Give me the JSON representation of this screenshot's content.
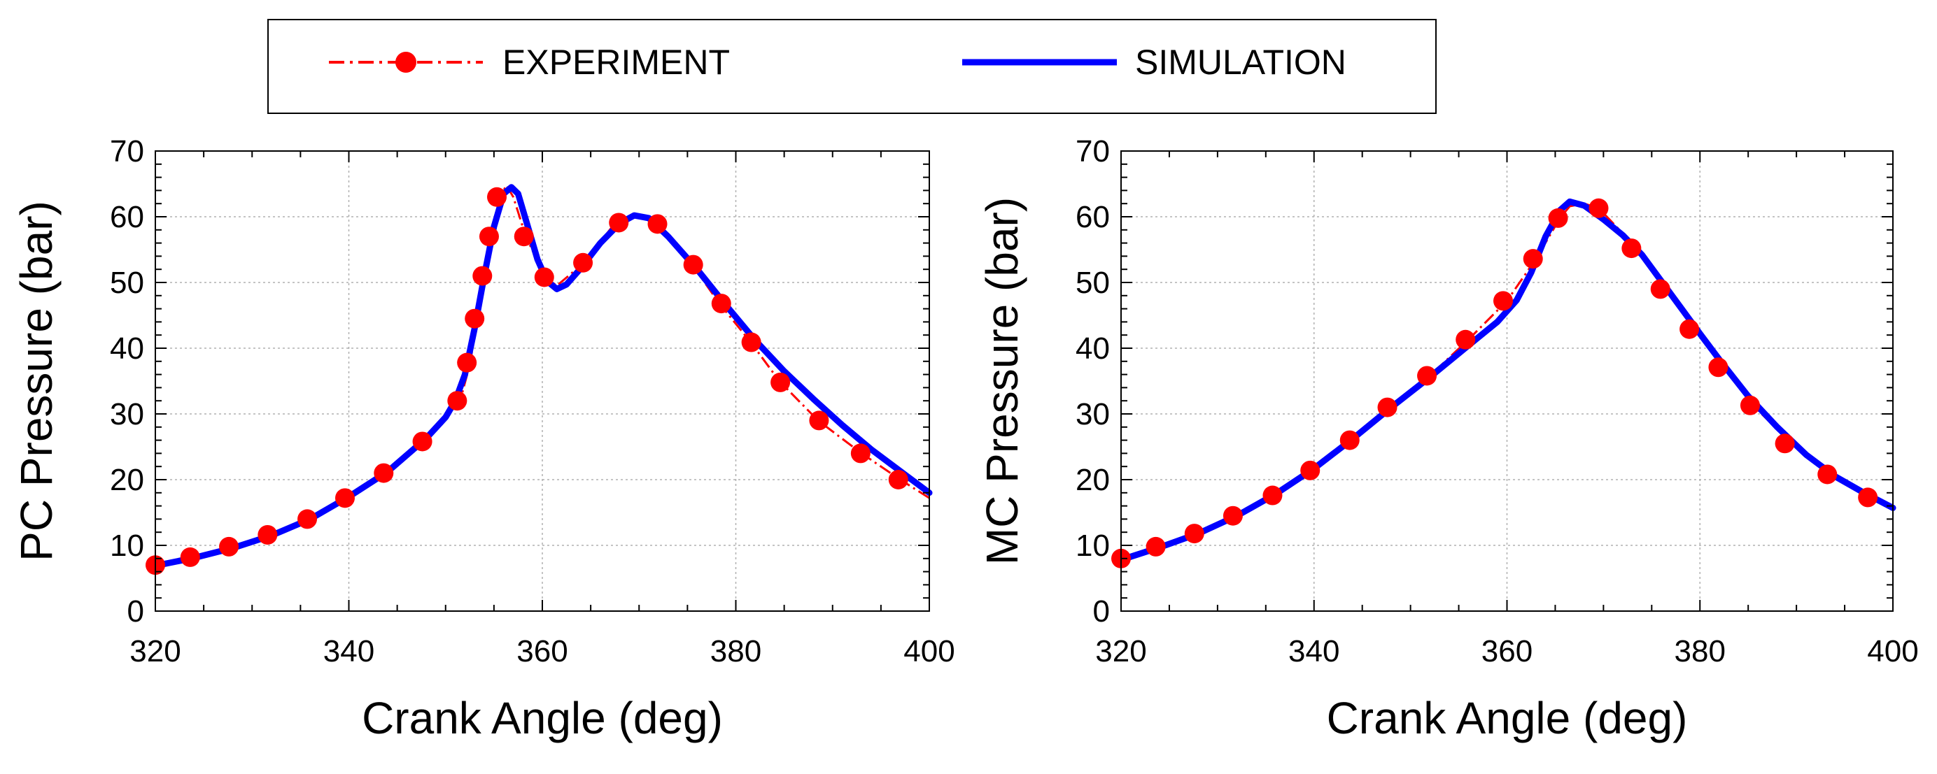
{
  "legend": {
    "entries": [
      {
        "label": "EXPERIMENT",
        "color": "#ff0000",
        "style": "dash-dot with circle markers"
      },
      {
        "label": "SIMULATION",
        "color": "#0000ff",
        "style": "solid"
      }
    ]
  },
  "chart_data": [
    {
      "type": "line",
      "title": "",
      "xlabel": "Crank Angle (deg)",
      "ylabel": "PC Pressure (bar)",
      "xlim": [
        320,
        400
      ],
      "ylim": [
        0,
        70
      ],
      "xticks": [
        320,
        340,
        360,
        380,
        400
      ],
      "yticks": [
        0,
        10,
        20,
        30,
        40,
        50,
        60,
        70
      ],
      "grid": true,
      "series": [
        {
          "name": "EXPERIMENT",
          "color": "#ff0000",
          "line": [
            [
              320,
              7
            ],
            [
              324,
              8.4
            ],
            [
              328,
              9.8
            ],
            [
              332,
              11.6
            ],
            [
              336,
              14
            ],
            [
              340,
              17.3
            ],
            [
              344,
              21
            ],
            [
              347.5,
              25.8
            ],
            [
              350,
              29.5
            ],
            [
              351.5,
              32
            ],
            [
              352.5,
              37.5
            ],
            [
              353.3,
              44.5
            ],
            [
              354,
              51
            ],
            [
              354.8,
              57
            ],
            [
              355.6,
              63
            ],
            [
              356.3,
              64.8
            ],
            [
              357,
              63
            ],
            [
              358.3,
              57
            ],
            [
              360.3,
              50.8
            ],
            [
              361.5,
              49.5
            ],
            [
              364.3,
              53
            ],
            [
              367.5,
              59
            ],
            [
              369.5,
              60.5
            ],
            [
              372,
              58.8
            ],
            [
              375.5,
              52.7
            ],
            [
              378.3,
              46.8
            ],
            [
              381.5,
              41
            ],
            [
              384.5,
              35
            ],
            [
              388.5,
              29
            ],
            [
              393,
              24
            ],
            [
              397,
              20
            ],
            [
              400,
              17.2
            ]
          ],
          "markers": [
            [
              320,
              7
            ],
            [
              323.6,
              8.2
            ],
            [
              327.6,
              9.8
            ],
            [
              331.6,
              11.6
            ],
            [
              335.7,
              14
            ],
            [
              339.6,
              17.2
            ],
            [
              343.6,
              21
            ],
            [
              347.6,
              25.8
            ],
            [
              351.2,
              32
            ],
            [
              352.2,
              37.8
            ],
            [
              353,
              44.5
            ],
            [
              353.8,
              51
            ],
            [
              354.5,
              57
            ],
            [
              355.3,
              63
            ],
            [
              358.1,
              57
            ],
            [
              360.2,
              50.8
            ],
            [
              364.2,
              53
            ],
            [
              367.9,
              59.1
            ],
            [
              371.9,
              58.9
            ],
            [
              375.6,
              52.7
            ],
            [
              378.5,
              46.8
            ],
            [
              381.6,
              40.9
            ],
            [
              384.6,
              34.8
            ],
            [
              388.6,
              29
            ],
            [
              392.9,
              24
            ],
            [
              396.8,
              20
            ]
          ]
        },
        {
          "name": "SIMULATION",
          "color": "#0000ff",
          "line": [
            [
              320,
              6.9
            ],
            [
              324,
              8.1
            ],
            [
              328,
              9.6
            ],
            [
              332,
              11.5
            ],
            [
              336,
              14
            ],
            [
              340,
              17.4
            ],
            [
              344,
              21.2
            ],
            [
              348,
              26.3
            ],
            [
              350,
              29.5
            ],
            [
              351,
              32
            ],
            [
              352,
              36
            ],
            [
              353,
              43
            ],
            [
              354,
              51
            ],
            [
              355,
              58.5
            ],
            [
              356,
              63.5
            ],
            [
              356.8,
              64.5
            ],
            [
              357.5,
              63.5
            ],
            [
              358.5,
              58.5
            ],
            [
              359.5,
              53.5
            ],
            [
              360.5,
              50.2
            ],
            [
              361.5,
              49
            ],
            [
              362.5,
              49.7
            ],
            [
              364,
              52.2
            ],
            [
              366,
              56
            ],
            [
              368,
              59
            ],
            [
              369.5,
              60.2
            ],
            [
              371,
              59.8
            ],
            [
              373,
              57
            ],
            [
              376,
              52
            ],
            [
              379,
              46.5
            ],
            [
              382,
              41.2
            ],
            [
              385,
              36.5
            ],
            [
              388,
              32.3
            ],
            [
              391,
              28.3
            ],
            [
              394,
              24.6
            ],
            [
              397,
              21.3
            ],
            [
              400,
              18
            ]
          ]
        }
      ]
    },
    {
      "type": "line",
      "title": "",
      "xlabel": "Crank Angle (deg)",
      "ylabel": "MC Pressure (bar)",
      "xlim": [
        320,
        400
      ],
      "ylim": [
        0,
        70
      ],
      "xticks": [
        320,
        340,
        360,
        380,
        400
      ],
      "yticks": [
        0,
        10,
        20,
        30,
        40,
        50,
        60,
        70
      ],
      "grid": true,
      "series": [
        {
          "name": "EXPERIMENT",
          "color": "#ff0000",
          "line": [
            [
              320,
              8
            ],
            [
              324,
              9.8
            ],
            [
              328,
              11.8
            ],
            [
              332,
              14.5
            ],
            [
              336,
              17.6
            ],
            [
              340,
              21.4
            ],
            [
              344,
              26
            ],
            [
              348,
              31
            ],
            [
              352,
              35.8
            ],
            [
              356,
              41.3
            ],
            [
              360,
              47.2
            ],
            [
              363,
              53.6
            ],
            [
              365.5,
              59.8
            ],
            [
              366.5,
              61.6
            ],
            [
              368,
              62
            ],
            [
              369.5,
              61.3
            ],
            [
              371,
              59
            ],
            [
              373.5,
              55.2
            ],
            [
              376.5,
              49
            ],
            [
              379.5,
              42.9
            ],
            [
              382.5,
              37.1
            ],
            [
              385.5,
              31.3
            ],
            [
              389.5,
              25.5
            ],
            [
              393.5,
              20.8
            ],
            [
              397.5,
              17.3
            ],
            [
              400,
              15.5
            ]
          ],
          "markers": [
            [
              320,
              8
            ],
            [
              323.6,
              9.8
            ],
            [
              327.6,
              11.8
            ],
            [
              331.6,
              14.5
            ],
            [
              335.7,
              17.6
            ],
            [
              339.6,
              21.4
            ],
            [
              343.7,
              26
            ],
            [
              347.6,
              31
            ],
            [
              351.7,
              35.8
            ],
            [
              355.7,
              41.3
            ],
            [
              359.6,
              47.2
            ],
            [
              362.7,
              53.6
            ],
            [
              365.3,
              59.8
            ],
            [
              369.5,
              61.3
            ],
            [
              372.9,
              55.2
            ],
            [
              375.9,
              49
            ],
            [
              378.9,
              42.9
            ],
            [
              381.9,
              37.1
            ],
            [
              385.2,
              31.3
            ],
            [
              388.8,
              25.5
            ],
            [
              393.2,
              20.8
            ],
            [
              397.4,
              17.3
            ]
          ]
        },
        {
          "name": "SIMULATION",
          "color": "#0000ff",
          "line": [
            [
              320,
              7.8
            ],
            [
              324,
              9.7
            ],
            [
              328,
              11.8
            ],
            [
              332,
              14.5
            ],
            [
              336,
              17.8
            ],
            [
              340,
              21.7
            ],
            [
              344,
              26.2
            ],
            [
              348,
              31
            ],
            [
              352,
              35.6
            ],
            [
              356,
              40.4
            ],
            [
              359,
              44
            ],
            [
              361,
              47.3
            ],
            [
              362.5,
              51.5
            ],
            [
              364,
              57
            ],
            [
              365.5,
              61
            ],
            [
              366.5,
              62.3
            ],
            [
              368,
              61.7
            ],
            [
              370,
              59.6
            ],
            [
              372,
              57.2
            ],
            [
              374,
              54.2
            ],
            [
              376,
              50.2
            ],
            [
              378,
              46.2
            ],
            [
              380,
              42.2
            ],
            [
              382,
              38.3
            ],
            [
              385,
              32.7
            ],
            [
              388,
              28
            ],
            [
              391,
              23.8
            ],
            [
              394,
              20.5
            ],
            [
              397,
              18
            ],
            [
              400,
              15.7
            ]
          ]
        }
      ]
    }
  ]
}
